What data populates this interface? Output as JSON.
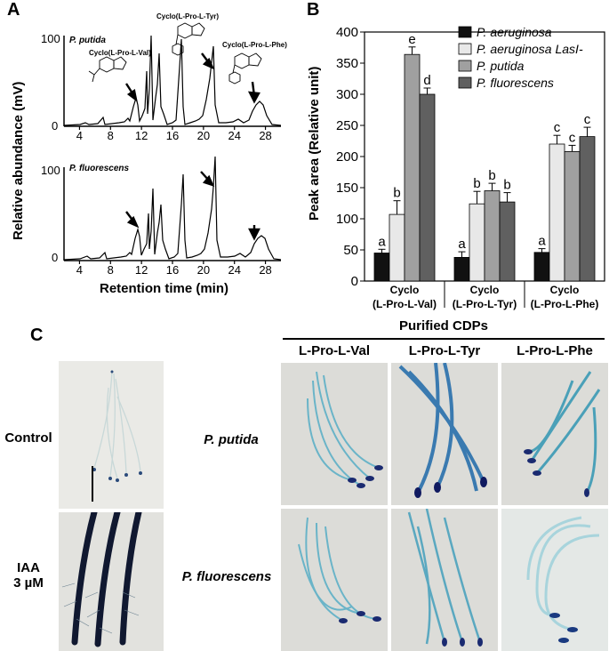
{
  "panel_a": {
    "letter": "A",
    "ylabel": "Relative abundance (mV)",
    "xlabel": "Retention time (min)",
    "top_label": "P. putida",
    "bottom_label": "P. fluorescens",
    "y_ticks": [
      "100",
      "0"
    ],
    "x_ticks": [
      "4",
      "8",
      "12",
      "16",
      "20",
      "24",
      "28"
    ],
    "compound_labels": [
      "Cyclo(L-Pro-L-Val)",
      "Cyclo(L-Pro-L-Tyr)",
      "Cyclo(L-Pro-L-Phe)"
    ]
  },
  "panel_b": {
    "letter": "B"
  },
  "chart_data": {
    "type": "bar",
    "ylabel": "Peak area (Relative unit)",
    "ylim": [
      0,
      400
    ],
    "yticks": [
      0,
      50,
      100,
      150,
      200,
      250,
      300,
      350,
      400
    ],
    "categories": [
      "Cyclo\n(L-Pro-L-Val)",
      "Cyclo\n(L-Pro-L-Tyr)",
      "Cyclo\n(L-Pro-L-Phe)"
    ],
    "series": [
      {
        "name": "P. aeruginosa",
        "color": "#111111",
        "values": [
          45,
          38,
          46
        ],
        "errors": [
          6,
          9,
          6
        ],
        "letters": [
          "a",
          "a",
          "a"
        ]
      },
      {
        "name": "P. aeruginosa LasI-",
        "color": "#e8e8e8",
        "values": [
          107,
          124,
          220
        ],
        "errors": [
          22,
          20,
          14
        ],
        "letters": [
          "b",
          "b",
          "c"
        ]
      },
      {
        "name": "P. putida",
        "color": "#a0a0a0",
        "values": [
          364,
          145,
          208
        ],
        "errors": [
          12,
          12,
          10
        ],
        "letters": [
          "e",
          "b",
          "c"
        ]
      },
      {
        "name": "P. fluorescens",
        "color": "#606060",
        "values": [
          300,
          127,
          232
        ],
        "errors": [
          10,
          15,
          15
        ],
        "letters": [
          "d",
          "b",
          "c"
        ]
      }
    ],
    "legend_position": "top-right"
  },
  "panel_c": {
    "letter": "C",
    "group_header": "Purified CDPs",
    "columns": [
      "L-Pro-L-Val",
      "L-Pro-L-Tyr",
      "L-Pro-L-Phe"
    ],
    "row_labels": [
      "Control",
      "IAA\n3 µM"
    ],
    "organisms": [
      "P. putida",
      "P. fluorescens"
    ]
  }
}
